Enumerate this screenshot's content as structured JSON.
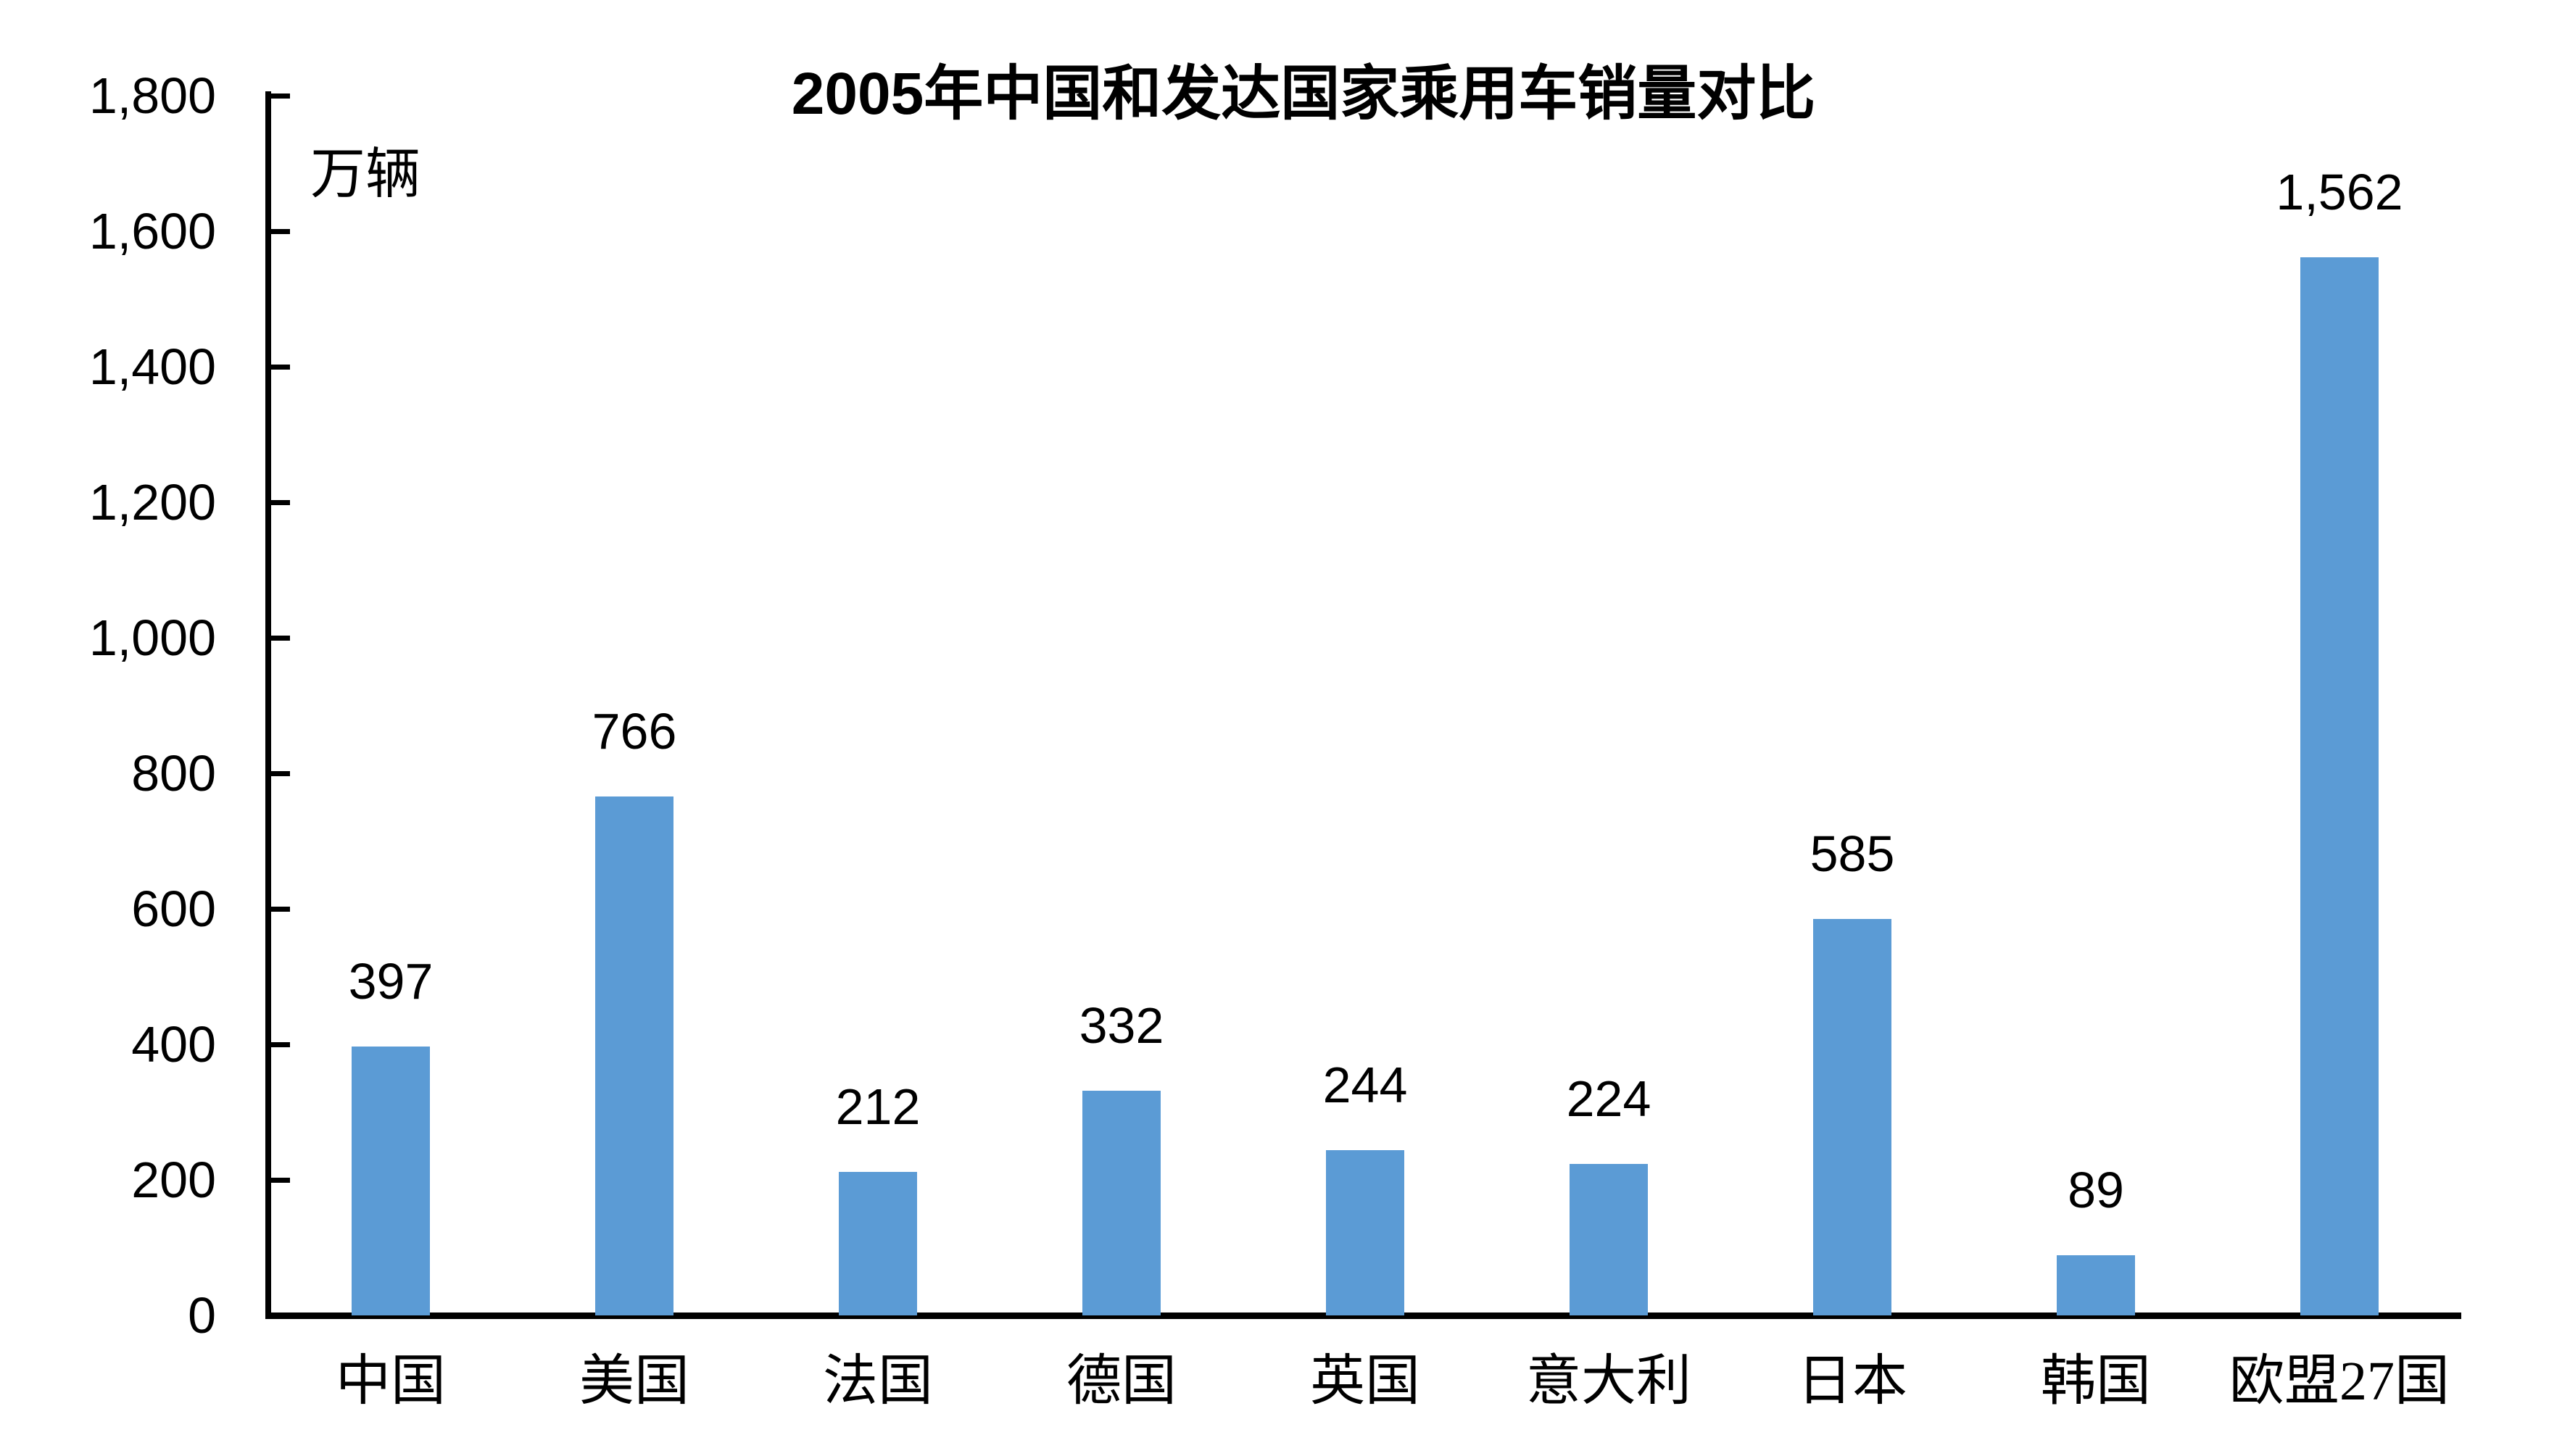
{
  "chart_data": {
    "type": "bar",
    "title": "2005年中国和发达国家乘用车销量对比",
    "unit_label": "万辆",
    "categories": [
      "中国",
      "美国",
      "法国",
      "德国",
      "英国",
      "意大利",
      "日本",
      "韩国",
      "欧盟27国"
    ],
    "values": [
      397,
      766,
      212,
      332,
      244,
      224,
      585,
      89,
      1562
    ],
    "value_labels": [
      "397",
      "766",
      "212",
      "332",
      "244",
      "224",
      "585",
      "89",
      "1,562"
    ],
    "xlabel": "",
    "ylabel": "万辆",
    "ylim": [
      0,
      1800
    ],
    "y_tick_step": 200,
    "y_tick_labels": [
      "0",
      "200",
      "400",
      "600",
      "800",
      "1,000",
      "1,200",
      "1,400",
      "1,600",
      "1,800"
    ],
    "grid": false,
    "legend": null,
    "bar_color": "#5B9BD5",
    "axis_color": "#000000",
    "text_color": "#000000"
  }
}
